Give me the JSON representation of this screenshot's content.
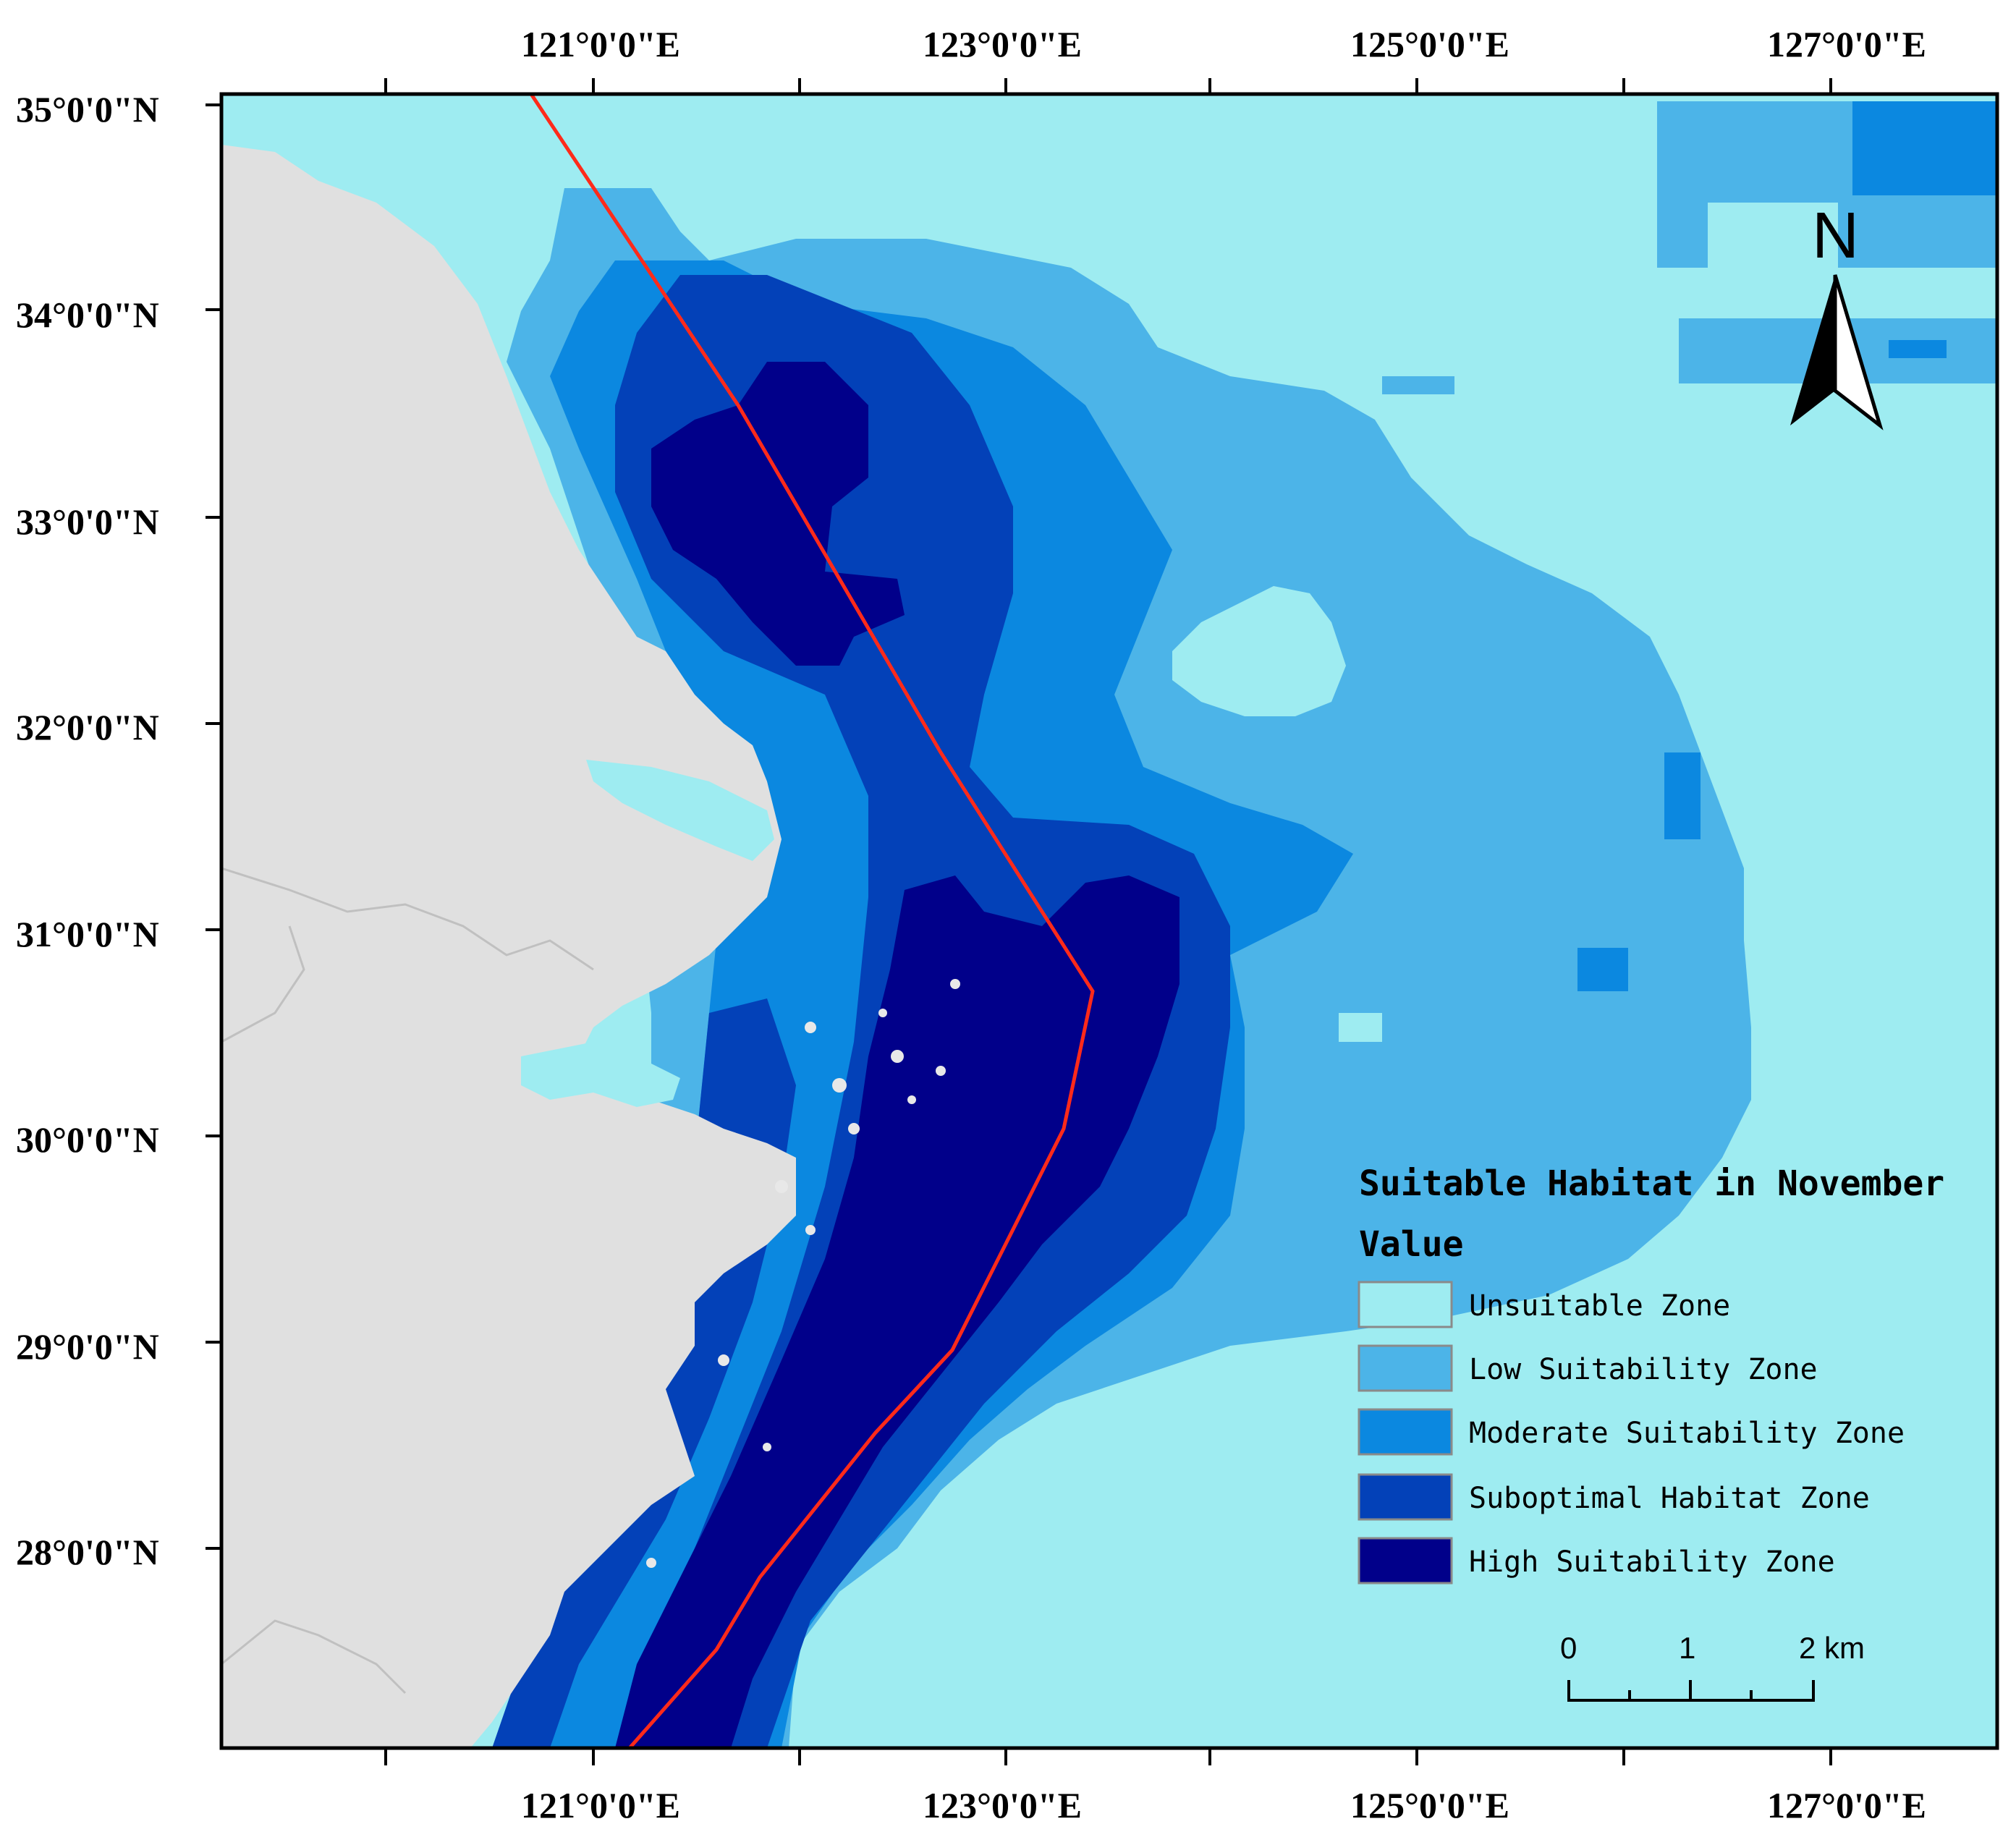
{
  "map": {
    "colors": {
      "unsuitable": "#9eecf1",
      "low": "#4cb4e8",
      "moderate": "#0b88e0",
      "suboptimal": "#0341b8",
      "high": "#01008a",
      "land": "#e0e0e0",
      "boundary_line": "#ff2a1a",
      "frame": "#000000"
    },
    "longitude_ticks_top": [
      "121°0'0\"E",
      "123°0'0\"E",
      "125°0'0\"E",
      "127°0'0\"E"
    ],
    "longitude_ticks_bottom": [
      "121°0'0\"E",
      "123°0'0\"E",
      "125°0'0\"E",
      "127°0'0\"E"
    ],
    "latitude_ticks": [
      "35°0'0\"N",
      "34°0'0\"N",
      "33°0'0\"N",
      "32°0'0\"N",
      "31°0'0\"N",
      "30°0'0\"N",
      "29°0'0\"N",
      "28°0'0\"N"
    ]
  },
  "legend": {
    "title": "Suitable Habitat in November",
    "subtitle": "Value",
    "items": [
      {
        "label": "Unsuitable Zone",
        "color_key": "unsuitable"
      },
      {
        "label": "Low Suitability Zone",
        "color_key": "low"
      },
      {
        "label": "Moderate Suitability Zone",
        "color_key": "moderate"
      },
      {
        "label": "Suboptimal Habitat Zone",
        "color_key": "suboptimal"
      },
      {
        "label": "High Suitability Zone",
        "color_key": "high"
      }
    ]
  },
  "north_arrow": {
    "label": "N",
    "icon": "north-arrow-icon"
  },
  "scale_bar": {
    "labels": [
      "0",
      "1",
      "2 km"
    ]
  }
}
